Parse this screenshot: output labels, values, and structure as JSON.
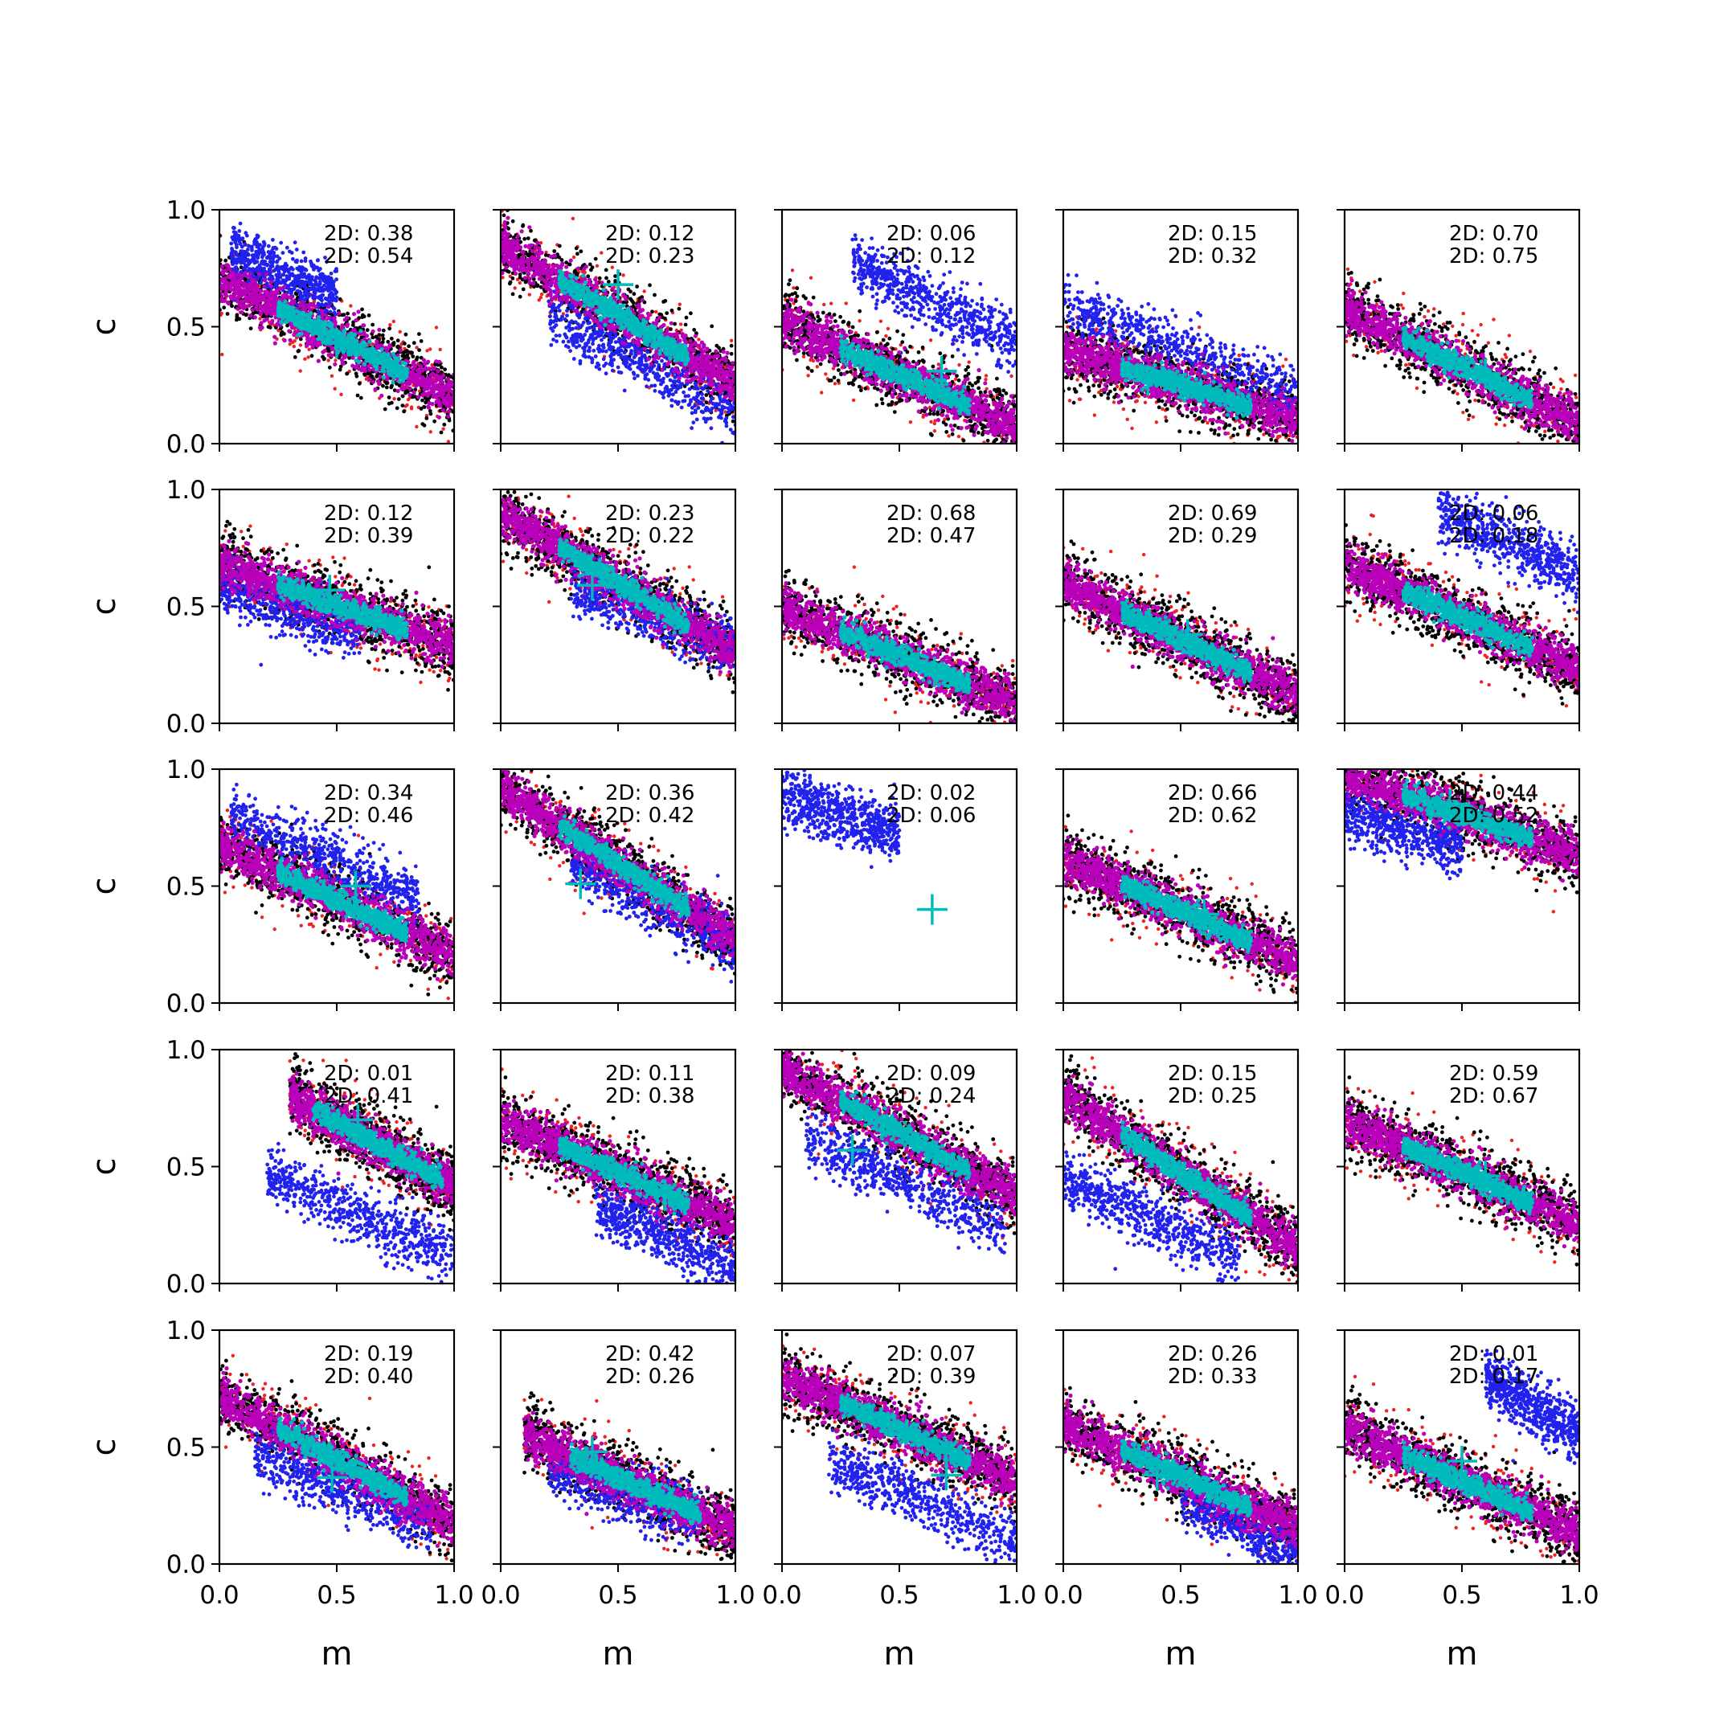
{
  "chart_data": {
    "type": "scatter",
    "layout": {
      "rows": 5,
      "cols": 5
    },
    "xlabel": "m",
    "ylabel": "c",
    "xlim": [
      0.0,
      1.0
    ],
    "ylim": [
      0.0,
      1.0
    ],
    "x_ticks": [
      "0.0",
      "0.5",
      "1.0"
    ],
    "y_ticks": [
      "0.0",
      "0.5",
      "1.0"
    ],
    "grid": false,
    "colors": {
      "outer": "#ee2222",
      "black": "#000000",
      "blue": "#2222ee",
      "magenta": "#bb00bb",
      "cyan": "#00bbbb",
      "marker": "#00bbbb"
    },
    "panels": [
      {
        "ann": [
          "2D: 0.38",
          "2D: 0.54"
        ],
        "true_point": [
          0.5,
          0.43
        ],
        "main": {
          "x0": 0.0,
          "y0": 0.7,
          "slope": -0.5
        },
        "blue": {
          "x0": 0.05,
          "y0": 0.82,
          "slope": -0.45,
          "x_range": [
            0.05,
            0.5
          ]
        }
      },
      {
        "ann": [
          "2D: 0.12",
          "2D: 0.23"
        ],
        "true_point": [
          0.5,
          0.68
        ],
        "main": {
          "x0": 0.0,
          "y0": 0.85,
          "slope": -0.6
        },
        "blue": {
          "x0": 0.3,
          "y0": 0.5,
          "slope": -0.5,
          "x_range": [
            0.2,
            1.0
          ]
        }
      },
      {
        "ann": [
          "2D: 0.06",
          "2D: 0.12"
        ],
        "true_point": [
          0.68,
          0.31
        ],
        "main": {
          "x0": 0.0,
          "y0": 0.52,
          "slope": -0.45
        },
        "blue": {
          "x0": 0.3,
          "y0": 0.78,
          "slope": -0.5,
          "x_range": [
            0.3,
            1.0
          ]
        }
      },
      {
        "ann": [
          "2D: 0.15",
          "2D: 0.32"
        ],
        "true_point": [
          0.36,
          0.27
        ],
        "main": {
          "x0": 0.0,
          "y0": 0.4,
          "slope": -0.3
        },
        "blue": {
          "x0": 0.0,
          "y0": 0.6,
          "slope": -0.4,
          "x_range": [
            0.0,
            1.0
          ]
        }
      },
      {
        "ann": [
          "2D: 0.70",
          "2D: 0.75"
        ],
        "true_point": [
          0.6,
          0.3
        ],
        "main": {
          "x0": 0.0,
          "y0": 0.58,
          "slope": -0.5
        },
        "blue": null
      },
      {
        "ann": [
          "2D: 0.12",
          "2D: 0.39"
        ],
        "true_point": [
          0.47,
          0.57
        ],
        "main": {
          "x0": 0.0,
          "y0": 0.68,
          "slope": -0.35
        },
        "blue": {
          "x0": 0.0,
          "y0": 0.6,
          "slope": -0.35,
          "x_range": [
            0.0,
            0.6
          ]
        }
      },
      {
        "ann": [
          "2D: 0.23",
          "2D: 0.22"
        ],
        "true_point": [
          0.39,
          0.59
        ],
        "main": {
          "x0": 0.0,
          "y0": 0.9,
          "slope": -0.6
        },
        "blue": {
          "x0": 0.3,
          "y0": 0.6,
          "slope": -0.4,
          "x_range": [
            0.3,
            1.0
          ]
        }
      },
      {
        "ann": [
          "2D: 0.68",
          "2D: 0.47"
        ],
        "true_point": [
          0.65,
          0.22
        ],
        "main": {
          "x0": 0.0,
          "y0": 0.5,
          "slope": -0.42
        },
        "blue": null
      },
      {
        "ann": [
          "2D: 0.69",
          "2D: 0.29"
        ],
        "true_point": [
          0.53,
          0.38
        ],
        "main": {
          "x0": 0.0,
          "y0": 0.6,
          "slope": -0.48
        },
        "blue": null
      },
      {
        "ann": [
          "2D: 0.06",
          "2D: 0.18"
        ],
        "true_point": [
          0.45,
          0.48
        ],
        "main": {
          "x0": 0.0,
          "y0": 0.68,
          "slope": -0.45
        },
        "blue": {
          "x0": 0.4,
          "y0": 0.92,
          "slope": -0.5,
          "x_range": [
            0.4,
            1.0
          ]
        }
      },
      {
        "ann": [
          "2D: 0.34",
          "2D: 0.46"
        ],
        "true_point": [
          0.58,
          0.5
        ],
        "main": {
          "x0": 0.0,
          "y0": 0.68,
          "slope": -0.48
        },
        "blue": {
          "x0": 0.1,
          "y0": 0.78,
          "slope": -0.45,
          "x_range": [
            0.05,
            0.85
          ]
        }
      },
      {
        "ann": [
          "2D: 0.36",
          "2D: 0.42"
        ],
        "true_point": [
          0.34,
          0.51
        ],
        "main": {
          "x0": 0.0,
          "y0": 0.92,
          "slope": -0.65
        },
        "blue": {
          "x0": 0.3,
          "y0": 0.6,
          "slope": -0.5,
          "x_range": [
            0.3,
            1.0
          ]
        }
      },
      {
        "ann": [
          "2D: 0.02",
          "2D: 0.06"
        ],
        "true_point": [
          0.64,
          0.4
        ],
        "main": null,
        "blue": {
          "x0": 0.0,
          "y0": 0.88,
          "slope": -0.3,
          "x_range": [
            0.0,
            0.5
          ]
        }
      },
      {
        "ann": [
          "2D: 0.66",
          "2D: 0.62"
        ],
        "true_point": [
          0.6,
          0.38
        ],
        "main": {
          "x0": 0.0,
          "y0": 0.62,
          "slope": -0.45
        },
        "blue": null
      },
      {
        "ann": [
          "2D: 0.44",
          "2D: 0.52"
        ],
        "true_point": [
          0.45,
          0.85
        ],
        "main": {
          "x0": 0.0,
          "y0": 0.98,
          "slope": -0.35
        },
        "blue": {
          "x0": 0.0,
          "y0": 0.82,
          "slope": -0.3,
          "x_range": [
            0.0,
            0.5
          ]
        }
      },
      {
        "ann": [
          "2D: 0.01",
          "2D: 0.41"
        ],
        "true_point": [
          0.59,
          0.7
        ],
        "main": {
          "x0": 0.3,
          "y0": 0.8,
          "slope": -0.55
        },
        "blue": {
          "x0": 0.25,
          "y0": 0.45,
          "slope": -0.45,
          "x_range": [
            0.2,
            1.0
          ]
        }
      },
      {
        "ann": [
          "2D: 0.11",
          "2D: 0.38"
        ],
        "true_point": [
          0.7,
          0.38
        ],
        "main": {
          "x0": 0.0,
          "y0": 0.7,
          "slope": -0.45
        },
        "blue": {
          "x0": 0.4,
          "y0": 0.35,
          "slope": -0.5,
          "x_range": [
            0.4,
            1.0
          ]
        }
      },
      {
        "ann": [
          "2D: 0.09",
          "2D: 0.24"
        ],
        "true_point": [
          0.3,
          0.57
        ],
        "main": {
          "x0": 0.0,
          "y0": 0.92,
          "slope": -0.55
        },
        "blue": {
          "x0": 0.15,
          "y0": 0.6,
          "slope": -0.45,
          "x_range": [
            0.1,
            0.95
          ]
        }
      },
      {
        "ann": [
          "2D: 0.15",
          "2D: 0.25"
        ],
        "true_point": [
          0.54,
          0.43
        ],
        "main": {
          "x0": 0.0,
          "y0": 0.8,
          "slope": -0.65
        },
        "blue": {
          "x0": 0.0,
          "y0": 0.45,
          "slope": -0.45,
          "x_range": [
            0.0,
            0.75
          ]
        }
      },
      {
        "ann": [
          "2D: 0.59",
          "2D: 0.67"
        ],
        "true_point": [
          0.6,
          0.46
        ],
        "main": {
          "x0": 0.0,
          "y0": 0.7,
          "slope": -0.45
        },
        "blue": null
      },
      {
        "ann": [
          "2D: 0.19",
          "2D: 0.40"
        ],
        "true_point": [
          0.48,
          0.37
        ],
        "main": {
          "x0": 0.0,
          "y0": 0.72,
          "slope": -0.55
        },
        "blue": {
          "x0": 0.2,
          "y0": 0.45,
          "slope": -0.4,
          "x_range": [
            0.15,
            0.9
          ]
        }
      },
      {
        "ann": [
          "2D: 0.42",
          "2D: 0.26"
        ],
        "true_point": [
          0.39,
          0.48
        ],
        "main": {
          "x0": 0.1,
          "y0": 0.55,
          "slope": -0.45
        },
        "blue": {
          "x0": 0.2,
          "y0": 0.42,
          "slope": -0.35,
          "x_range": [
            0.2,
            0.85
          ]
        }
      },
      {
        "ann": [
          "2D: 0.07",
          "2D: 0.39"
        ],
        "true_point": [
          0.7,
          0.38
        ],
        "main": {
          "x0": 0.0,
          "y0": 0.8,
          "slope": -0.45
        },
        "blue": {
          "x0": 0.2,
          "y0": 0.45,
          "slope": -0.45,
          "x_range": [
            0.2,
            1.0
          ]
        }
      },
      {
        "ann": [
          "2D: 0.26",
          "2D: 0.33"
        ],
        "true_point": [
          0.4,
          0.38
        ],
        "main": {
          "x0": 0.0,
          "y0": 0.6,
          "slope": -0.45
        },
        "blue": {
          "x0": 0.5,
          "y0": 0.3,
          "slope": -0.5,
          "x_range": [
            0.5,
            1.0
          ]
        }
      },
      {
        "ann": [
          "2D: 0.01",
          "2D: 0.17"
        ],
        "true_point": [
          0.5,
          0.44
        ],
        "main": {
          "x0": 0.0,
          "y0": 0.58,
          "slope": -0.45
        },
        "blue": {
          "x0": 0.6,
          "y0": 0.8,
          "slope": -0.6,
          "x_range": [
            0.6,
            1.0
          ]
        }
      }
    ]
  }
}
